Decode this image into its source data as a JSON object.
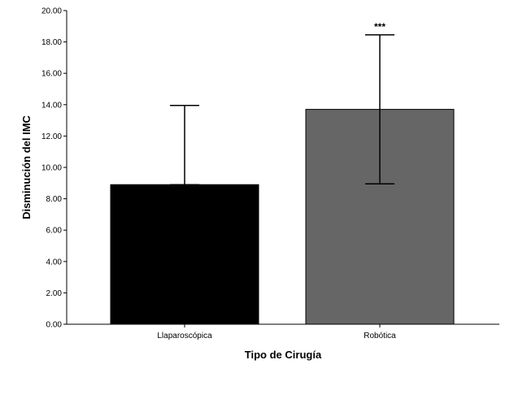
{
  "chart_data": {
    "type": "bar",
    "title": "",
    "xlabel": "Tipo de Cirugía",
    "ylabel": "Disminución del IMC",
    "ylim": [
      0,
      20
    ],
    "yticks": [
      "0.00",
      "2.00",
      "4.00",
      "6.00",
      "8.00",
      "10.00",
      "12.00",
      "14.00",
      "16.00",
      "18.00",
      "20.00"
    ],
    "categories": [
      "Llaparoscópica",
      "Robótica"
    ],
    "values": [
      8.9,
      13.7
    ],
    "error_upper": [
      13.95,
      18.45
    ],
    "error_lower": [
      8.9,
      8.95
    ],
    "annotations": [
      "",
      "***"
    ],
    "colors": [
      "#000000",
      "#666666"
    ],
    "grid": false,
    "legend": "none"
  }
}
